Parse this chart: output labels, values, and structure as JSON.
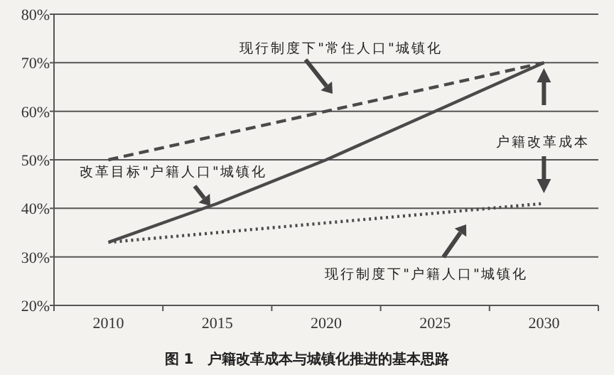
{
  "chart_data": {
    "type": "line",
    "title": "图 1　户籍改革成本与城镇化推进的基本思路",
    "categories": [
      "2010",
      "2015",
      "2020",
      "2025",
      "2030"
    ],
    "series": [
      {
        "color": "#4a4a4a",
        "line_style": "dashed",
        "values": [
          50,
          55,
          60,
          65,
          70
        ]
      },
      {
        "color": "#4a4a4a",
        "line_style": "solid",
        "values": [
          33,
          41,
          50,
          60,
          70
        ]
      },
      {
        "color": "#4a4a4a",
        "line_style": "dotted",
        "values": [
          33,
          35,
          37,
          39,
          41
        ]
      }
    ],
    "ylim": [
      20,
      80
    ],
    "yticks": [
      {
        "value": 20,
        "label": "20%"
      },
      {
        "value": 30,
        "label": "30%"
      },
      {
        "value": 40,
        "label": "40%"
      },
      {
        "value": 50,
        "label": "50%"
      },
      {
        "value": 60,
        "label": "60%"
      },
      {
        "value": 70,
        "label": "70%"
      },
      {
        "value": 80,
        "label": "80%"
      }
    ],
    "grid": "y",
    "marker": "none",
    "annotations": [
      "现行制度下\"常住人口\"城镇化",
      "改革目标\"户籍人口\"城镇化",
      "现行制度下\"户籍人口\"城镇化",
      "户籍改革成本"
    ]
  }
}
